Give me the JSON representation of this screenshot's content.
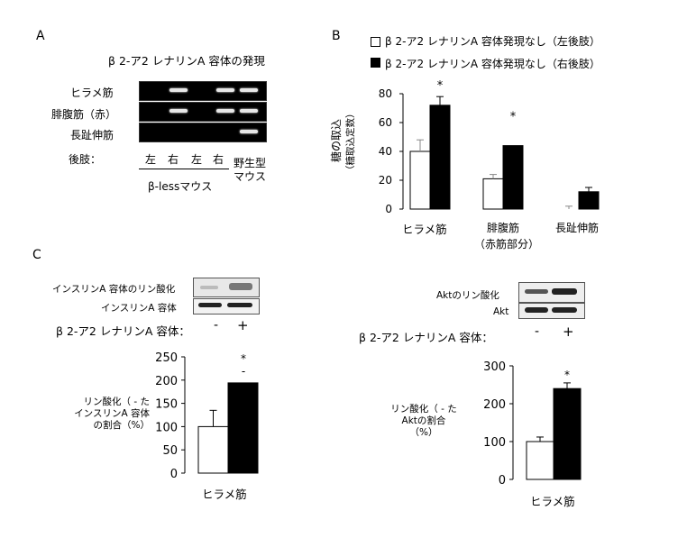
{
  "panelA": {
    "label": "A",
    "title": "β 2-ア2 レナリンA 容体の発現",
    "row_labels": [
      "ヒラメ筋",
      "腓腹筋（赤）",
      "長趾伸筋"
    ],
    "limb_label": "後肢：",
    "lanes": [
      "左",
      "右",
      "左",
      "右"
    ],
    "group1": "β-lessマウス",
    "group2": "野生型\nマウス",
    "bands": [
      [
        false,
        true,
        false,
        true,
        true
      ],
      [
        false,
        true,
        false,
        true,
        true
      ],
      [
        false,
        false,
        false,
        false,
        true
      ]
    ]
  },
  "panelB": {
    "label": "B",
    "legend_white": "β 2-ア2 レナリンA 容体発現なし（左後肢）",
    "legend_black": "β 2-ア2 レナリンA 容体発現なし（右後肢）",
    "ylabel1": "糖の取込",
    "ylabel2": "（糖取込定数）",
    "ticks": [
      "0",
      "20",
      "40",
      "60",
      "80"
    ],
    "star": "*",
    "cat1": "ヒラメ筋",
    "cat2": "腓腹筋",
    "cat2b": "（赤筋部分）",
    "cat3": "長趾伸筋"
  },
  "panelC": {
    "label": "C",
    "blot_row1": "インスリンA 容体のリン酸化",
    "blot_row2": "インスリンA 容体",
    "receptor_label": "β 2-ア2 レナリンA 容体：",
    "minus": "-",
    "plus": "+",
    "ylabel": "リン酸化（ - た\nインスリンA 容体\nの割合（%）",
    "ticks": [
      "0",
      "50",
      "100",
      "150",
      "200",
      "250"
    ],
    "star": "*",
    "dash": "-",
    "xlabel": "ヒラメ筋"
  },
  "panelD": {
    "blot_row1": "Aktのリン酸化",
    "blot_row2": "Akt",
    "receptor_label": "β 2-ア2 レナリンA 容体：",
    "minus": "-",
    "plus": "+",
    "ylabel": "リン酸化（ - た\nAktの割合\n（%）",
    "ticks": [
      "0",
      "100",
      "200",
      "300"
    ],
    "star": "*",
    "xlabel": "ヒラメ筋"
  },
  "colors": {
    "white_bar": "#ffffff",
    "black_bar": "#000000",
    "gel": "#000000"
  },
  "chart_data": [
    {
      "type": "bar",
      "categories": [
        "ヒラメ筋",
        "腓腹筋（赤筋部分）",
        "長趾伸筋"
      ],
      "series": [
        {
          "name": "β 2-ア2 レナリンA 容体発現なし（左後肢）",
          "values": [
            40,
            21,
            0
          ],
          "errors": [
            8,
            3,
            2
          ]
        },
        {
          "name": "β 2-ア2 レナリンA 容体発現なし（右後肢）",
          "values": [
            72,
            44,
            12
          ],
          "errors": [
            6,
            0,
            3
          ]
        }
      ],
      "ylabel": "糖の取込（糖取込定数）",
      "ylim": [
        0,
        80
      ],
      "significance": [
        "*",
        "*",
        ""
      ]
    },
    {
      "type": "bar",
      "categories": [
        "-",
        "+"
      ],
      "values": [
        100,
        194
      ],
      "errors": [
        35,
        0
      ],
      "xlabel": "ヒラメ筋",
      "ylim": [
        0,
        250
      ]
    },
    {
      "type": "bar",
      "categories": [
        "-",
        "+"
      ],
      "values": [
        100,
        240
      ],
      "errors": [
        12,
        15
      ],
      "xlabel": "ヒラメ筋",
      "ylim": [
        0,
        300
      ]
    }
  ]
}
